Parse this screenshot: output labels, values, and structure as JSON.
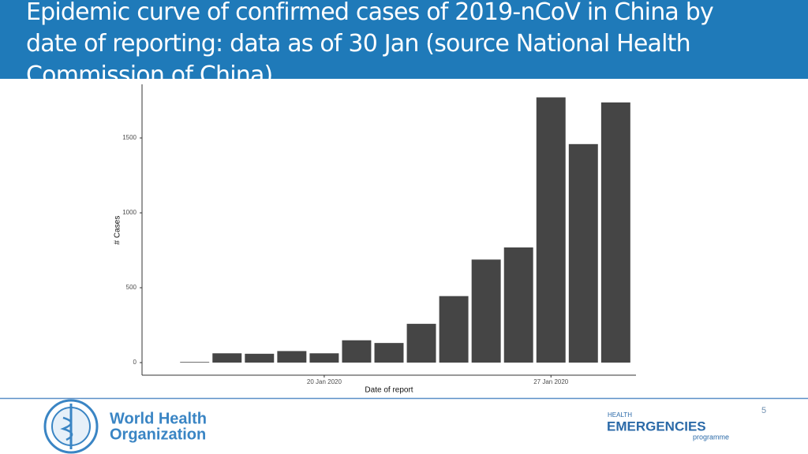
{
  "header": {
    "title": "Epidemic curve of confirmed cases of 2019-nCoV in China by date of reporting: data as of 30 Jan (source National Health Commission of China)"
  },
  "chart_data": {
    "type": "bar",
    "x": [
      "2020-01-16",
      "2020-01-17",
      "2020-01-18",
      "2020-01-19",
      "2020-01-20",
      "2020-01-21",
      "2020-01-22",
      "2020-01-23",
      "2020-01-24",
      "2020-01-25",
      "2020-01-26",
      "2020-01-27",
      "2020-01-28",
      "2020-01-29"
    ],
    "values": [
      4,
      62,
      59,
      77,
      62,
      149,
      131,
      259,
      444,
      688,
      769,
      1771,
      1459,
      1737
    ],
    "color": "#454545",
    "x_label": "Date of report",
    "y_label": "# Cases",
    "xlim": [
      "2020-01-14T21:00:00Z",
      "2020-01-30T03:00:00Z"
    ],
    "xticks": [
      {
        "value": "2020-01-20",
        "label": "20 Jan 2020"
      },
      {
        "value": "2020-01-27",
        "label": "27 Jan 2020"
      }
    ],
    "ylim": [
      -84,
      1858
    ],
    "yticks": [
      0,
      500,
      1000,
      1500
    ],
    "grid": false
  },
  "footer": {
    "page_number": "5",
    "logo_lines": [
      "World Health",
      "Organization"
    ],
    "programme_lines": [
      "HEALTH",
      "EMERGENCIES",
      "programme"
    ]
  }
}
